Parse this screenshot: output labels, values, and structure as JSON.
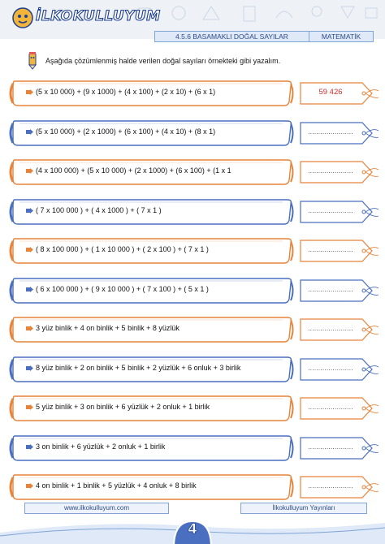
{
  "header": {
    "logo_text": "İLKOKULLUYUM",
    "topic": "4.5.6 BASAMAKLI DOĞAL SAYILAR",
    "subject": "MATEMATİK"
  },
  "instruction": "Aşağıda çözümlenmiş halde verilen doğal sayıları örnekteki gibi yazalım.",
  "rows": [
    {
      "expression": "(5 x 10 000) + (9 x 1000) + (4 x 100) + (2 x 10) + (6 x 1)",
      "answer": "59 426",
      "frame": "orange"
    },
    {
      "expression": "(5 x 10 000) + (2 x 1000) + (6 x 100) + (4 x 10) + (8 x 1)",
      "answer": "......................",
      "frame": "blue"
    },
    {
      "expression": "(4 x 100 000) + (5 x 10 000) + (2 x 1000) + (6 x 100) + (1 x 1",
      "answer": "......................",
      "frame": "orange"
    },
    {
      "expression": "( 7 x 100 000 ) + ( 4 x 1000 ) + ( 7 x 1 )",
      "answer": "......................",
      "frame": "blue"
    },
    {
      "expression": "( 8 x 100 000 ) + ( 1 x 10 000 ) + ( 2 x 100 ) + ( 7 x 1 )",
      "answer": "......................",
      "frame": "orange"
    },
    {
      "expression": "( 6 x 100 000 ) + ( 9 x 10 000 ) + ( 7 x 100 ) + ( 5 x 1 )",
      "answer": "......................",
      "frame": "blue"
    },
    {
      "expression": "3 yüz binlik + 4 on binlik + 5 binlik  + 8 yüzlük",
      "answer": "......................",
      "frame": "orange"
    },
    {
      "expression": "8 yüz binlik + 2 on binlik +   5 binlik + 2 yüzlük + 6 onluk + 3 birlik",
      "answer": "......................",
      "frame": "blue"
    },
    {
      "expression": "5 yüz binlik + 3 on binlik +  6 yüzlük + 2 onluk + 1 birlik",
      "answer": "......................",
      "frame": "orange"
    },
    {
      "expression": "3 on binlik +  6 yüzlük + 2 onluk + 1 birlik",
      "answer": "......................",
      "frame": "blue"
    },
    {
      "expression": "4 on binlik +  1 binlik + 5 yüzlük + 4 onluk + 8 birlik",
      "answer": "......................",
      "frame": "orange"
    }
  ],
  "footer": {
    "website": "www.ilkokulluyum.com",
    "publisher": "İlkokulluyum Yayınları",
    "page_number": "4"
  },
  "colors": {
    "orange": "#e8833a",
    "blue": "#4a6fc0",
    "answer_red": "#d12f2f",
    "header_blue": "#2d4c8b"
  }
}
